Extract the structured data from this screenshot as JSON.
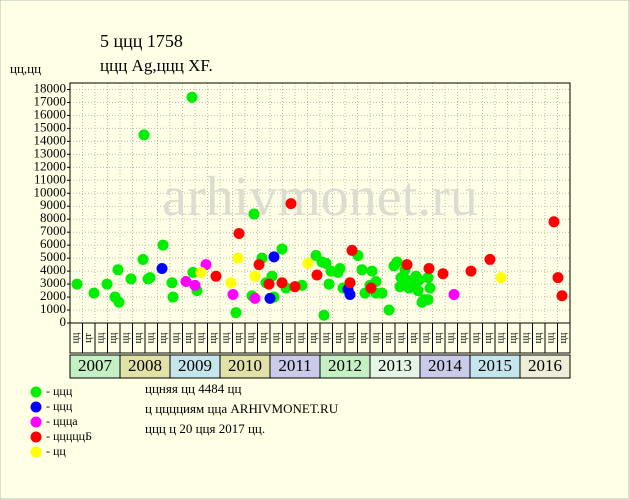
{
  "chart_data": {
    "type": "scatter",
    "title": "5 ццц 1758",
    "subtitle": "ццц Ag,ццц XF.",
    "y_label": "цц,цц",
    "watermark": "arhivmonet.ru",
    "xlim": [
      2007,
      2017
    ],
    "ylim": [
      0,
      18500
    ],
    "yticks": [
      0,
      1000,
      2000,
      3000,
      4000,
      5000,
      6000,
      7000,
      8000,
      9000,
      10000,
      11000,
      12000,
      13000,
      14000,
      15000,
      16000,
      17000,
      18000
    ],
    "grid": true,
    "period_labels": [
      "цц",
      "цт",
      "цц",
      "цц",
      "цц",
      "цц",
      "цц",
      "цц",
      "цц",
      "цц",
      "цц",
      "цц",
      "цц",
      "цц",
      "цц",
      "цц",
      "цц",
      "цц",
      "цц",
      "цц",
      "цц",
      "цц",
      "цц",
      "цц",
      "цц",
      "цц",
      "цц",
      "цц",
      "цц",
      "цц",
      "цц",
      "цц",
      "цц",
      "цц",
      "цц",
      "цц",
      "цц",
      "цц",
      "цц",
      "цц"
    ],
    "years": [
      {
        "label": "2007",
        "color": "#c4f0c4"
      },
      {
        "label": "2008",
        "color": "#e2e2a8"
      },
      {
        "label": "2009",
        "color": "#c6e6ee"
      },
      {
        "label": "2010",
        "color": "#e2e2a8"
      },
      {
        "label": "2011",
        "color": "#cacaea"
      },
      {
        "label": "2012",
        "color": "#c4f0c4"
      },
      {
        "label": "2013",
        "color": "#e6f6e6"
      },
      {
        "label": "2014",
        "color": "#cacaea"
      },
      {
        "label": "2015",
        "color": "#c6e6ee"
      },
      {
        "label": "2016",
        "color": "#eeeed8"
      }
    ],
    "series": [
      {
        "name": "- ццц",
        "color": "#00ee00",
        "x": [
          2007.14,
          2007.48,
          2007.74,
          2007.9,
          2007.96,
          2007.98,
          2008.22,
          2008.46,
          2008.48,
          2008.56,
          2008.6,
          2008.86,
          2009.04,
          2009.06,
          2009.44,
          2009.46,
          2009.54,
          2010.32,
          2010.64,
          2010.68,
          2010.84,
          2010.92,
          2011.04,
          2011.08,
          2011.24,
          2011.32,
          2011.64,
          2011.92,
          2012.04,
          2012.08,
          2012.12,
          2012.18,
          2012.22,
          2012.36,
          2012.4,
          2012.46,
          2012.76,
          2012.84,
          2012.9,
          2013.0,
          2013.04,
          2013.12,
          2013.12,
          2013.24,
          2013.38,
          2013.48,
          2013.54,
          2013.6,
          2013.62,
          2013.7,
          2013.74,
          2013.78,
          2013.84,
          2013.92,
          2013.96,
          2013.98,
          2014.04,
          2014.08,
          2014.16,
          2014.16,
          2014.2
        ],
        "values": [
          3000,
          2300,
          3000,
          2000,
          4100,
          1600,
          3400,
          4900,
          14500,
          3400,
          3500,
          6000,
          3100,
          2000,
          17400,
          3900,
          2500,
          800,
          2100,
          8400,
          5000,
          3100,
          3600,
          2000,
          5700,
          2700,
          2900,
          5200,
          4700,
          600,
          4600,
          3000,
          4000,
          3900,
          4200,
          2700,
          5200,
          4100,
          2300,
          2900,
          4000,
          3200,
          2300,
          2300,
          1000,
          4400,
          4700,
          2800,
          3500,
          4100,
          3300,
          2700,
          3000,
          3600,
          2500,
          3300,
          1600,
          1800,
          1800,
          3500,
          2700
        ]
      },
      {
        "name": "- ццц",
        "color": "#0000ff",
        "x": [
          2008.84,
          2011.0,
          2011.08,
          2012.56,
          2012.6
        ],
        "values": [
          4200,
          1900,
          5100,
          2600,
          2200
        ]
      },
      {
        "name": "- ццца",
        "color": "#ff00ff",
        "x": [
          2009.32,
          2009.5,
          2009.72,
          2010.26,
          2010.7,
          2014.68
        ],
        "values": [
          3200,
          2900,
          4500,
          2200,
          1900,
          2200
        ]
      },
      {
        "name": "- цццццБ",
        "color": "#ff0000",
        "x": [
          2009.92,
          2010.38,
          2010.78,
          2010.98,
          2011.24,
          2011.42,
          2011.5,
          2011.94,
          2012.6,
          2012.64,
          2013.02,
          2013.74,
          2014.18,
          2014.46,
          2015.02,
          2015.4,
          2016.68,
          2016.76,
          2016.84
        ],
        "values": [
          3600,
          6900,
          4500,
          3000,
          3100,
          9200,
          2800,
          3700,
          3100,
          5600,
          2700,
          4500,
          4200,
          3800,
          4000,
          4900,
          7800,
          3500,
          2100
        ]
      },
      {
        "name": "- цц",
        "color": "#ffff00",
        "x": [
          2009.62,
          2010.22,
          2010.36,
          2010.7,
          2011.76,
          2015.62
        ],
        "values": [
          3900,
          3100,
          5000,
          3600,
          4600,
          3500
        ]
      }
    ],
    "notes": [
      "ццняя цц 4484 цц",
      "ц цццциям цца ARHIVMONET.RU",
      "ццц ц 20 цця 2017 цц."
    ]
  }
}
